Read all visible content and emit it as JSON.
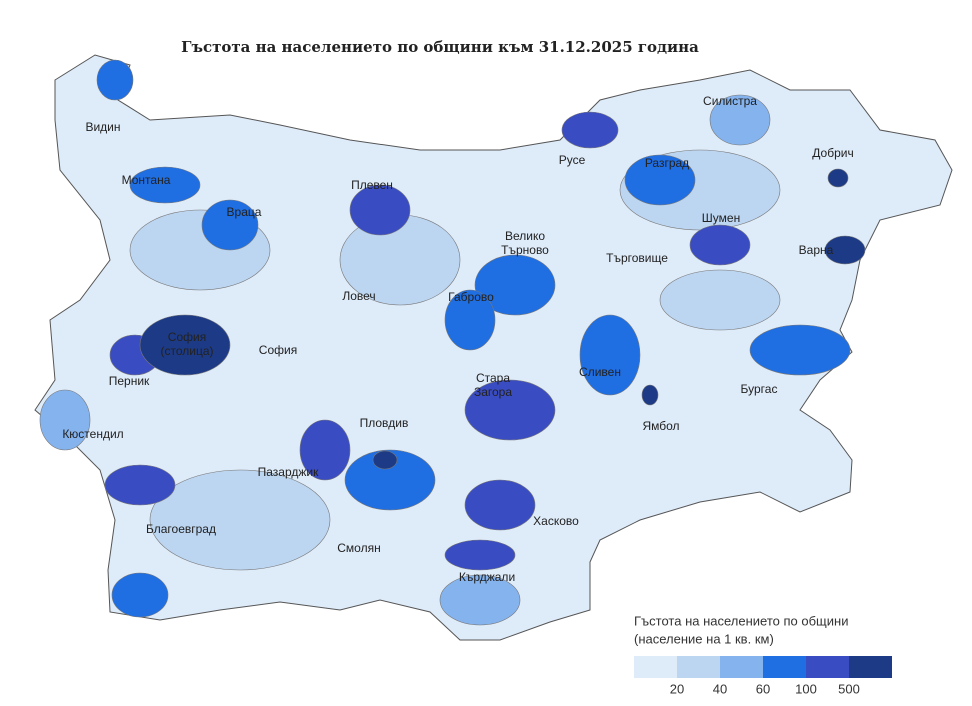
{
  "title": "Гъстота на населението по общини към 31.12.2025 година",
  "regions": [
    {
      "lines": [
        "Видин"
      ]
    },
    {
      "lines": [
        "Монтана"
      ]
    },
    {
      "lines": [
        "Враца"
      ]
    },
    {
      "lines": [
        "Плевен"
      ]
    },
    {
      "lines": [
        "Русе"
      ]
    },
    {
      "lines": [
        "Силистра"
      ]
    },
    {
      "lines": [
        "Добрич"
      ]
    },
    {
      "lines": [
        "Разград"
      ]
    },
    {
      "lines": [
        "Шумен"
      ]
    },
    {
      "lines": [
        "Варна"
      ]
    },
    {
      "lines": [
        "Велико",
        "Търново"
      ]
    },
    {
      "lines": [
        "Търговище"
      ]
    },
    {
      "lines": [
        "Ловеч"
      ]
    },
    {
      "lines": [
        "Габрово"
      ]
    },
    {
      "lines": [
        "София",
        "(столица)"
      ]
    },
    {
      "lines": [
        "София"
      ]
    },
    {
      "lines": [
        "Перник"
      ]
    },
    {
      "lines": [
        "Кюстендил"
      ]
    },
    {
      "lines": [
        "Стара",
        "Загора"
      ]
    },
    {
      "lines": [
        "Сливен"
      ]
    },
    {
      "lines": [
        "Ямбол"
      ]
    },
    {
      "lines": [
        "Бургас"
      ]
    },
    {
      "lines": [
        "Пловдив"
      ]
    },
    {
      "lines": [
        "Пазарджик"
      ]
    },
    {
      "lines": [
        "Хасково"
      ]
    },
    {
      "lines": [
        "Благоевград"
      ]
    },
    {
      "lines": [
        "Смолян"
      ]
    },
    {
      "lines": [
        "Кърджали"
      ]
    }
  ],
  "legend": {
    "lines": [
      "Гъстота на населението по общини",
      "(население на 1 кв. км)"
    ],
    "colors": [
      "#deebf9",
      "#bcd5f0",
      "#84b3ee",
      "#1f6ee2",
      "#3a4cc2",
      "#1c3a86"
    ],
    "ticks": [
      20,
      40,
      60,
      100,
      500
    ]
  }
}
